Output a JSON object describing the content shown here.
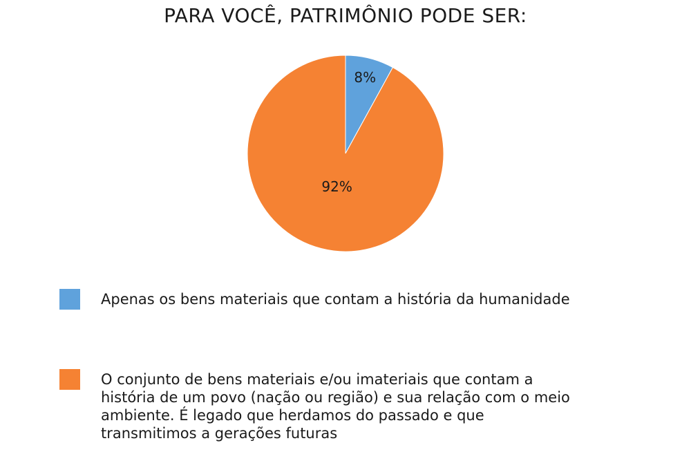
{
  "chart_data": {
    "type": "pie",
    "title": "PARA VOCÊ, PATRIMÔNIO PODE SER:",
    "slices": [
      {
        "label": "Apenas os bens materiais que contam a história da humanidade",
        "value": 8,
        "display": "8%",
        "color": "#5fa2dc"
      },
      {
        "label": "O conjunto de bens materiais e/ou imateriais que contam a história de um povo (nação ou região) e sua relação com o meio ambiente. É legado que herdamos do passado e que transmitimos a gerações futuras",
        "value": 92,
        "display": "92%",
        "color": "#f58233"
      }
    ],
    "legend": "bottom"
  }
}
